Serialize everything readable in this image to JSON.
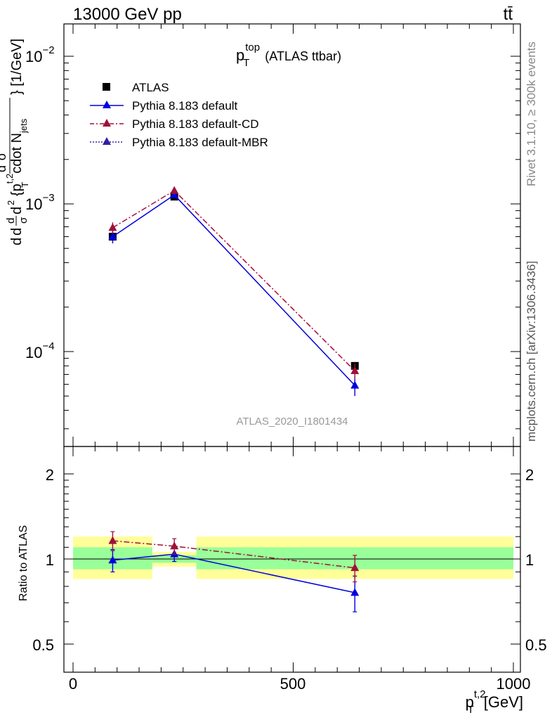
{
  "header": {
    "left": "13000 GeV pp",
    "right": "tt̄"
  },
  "side_labels": {
    "rivet": "Rivet 3.1.10, ≥ 300k events",
    "mcplots": "mcplots.cern.ch [arXiv:1306.3436]"
  },
  "chart_data": [
    {
      "type": "scatter",
      "panel": "main",
      "title": "p_T^top (ATLAS ttbar)",
      "title_parts": {
        "main": "p",
        "sup": "top",
        "sub": "T",
        "suffix": "(ATLAS ttbar)"
      },
      "ylabel": "d σ / d^2 {p_T^{t,2} cdot N_jets} [1/GeV] (normalized)",
      "ylabel_parts": {
        "frac1_num": "d",
        "frac1_den": "σ",
        "frac2_num": "d",
        "frac2_den": "σ",
        "sigma_left": "d",
        "dsq_num": "d",
        "dsq_num_sup": "2",
        "sigma_sup": "fid",
        "d2": "d",
        "d2_sup": "2",
        "brace": "{p",
        "pt_sup": "t,2",
        "pt_sub": "T",
        "cdot": "cdot N",
        "jets_sub": "jets",
        "unit": "} [1/GeV]"
      },
      "yscale": "log",
      "ylim": [
        2.5e-05,
        0.016
      ],
      "xlim": [
        -20,
        1000
      ],
      "ytick_labels": [
        {
          "base": "10",
          "exp": "−2",
          "value": 0.01
        },
        {
          "base": "10",
          "exp": "−3",
          "value": 0.001
        },
        {
          "base": "10",
          "exp": "−4",
          "value": 0.0001
        }
      ],
      "legend": [
        "ATLAS",
        "Pythia 8.183 default",
        "Pythia 8.183 default-CD",
        "Pythia 8.183 default-MBR"
      ],
      "watermark": "ATLAS_2020_I1801434",
      "series": [
        {
          "name": "ATLAS",
          "color": "#000000",
          "marker": "square",
          "x": [
            90,
            230,
            640
          ],
          "y": [
            0.0006,
            0.00112,
            8e-05
          ],
          "yerr": [
            4e-05,
            4e-05,
            1.8e-06
          ]
        },
        {
          "name": "Pythia 8.183 default",
          "color": "#0000dd",
          "marker": "triangle",
          "line": "solid",
          "x": [
            90,
            230,
            640
          ],
          "y": [
            0.0006,
            0.00115,
            5.9e-05
          ],
          "yerr": [
            6e-05,
            6e-05,
            9e-06
          ]
        },
        {
          "name": "Pythia 8.183 default-CD",
          "color": "#a0103a",
          "marker": "triangle",
          "line": "dashdot",
          "x": [
            90,
            230,
            640
          ],
          "y": [
            0.00069,
            0.00123,
            7.4e-05
          ],
          "yerr": [
            6e-05,
            7e-05,
            9e-06
          ]
        },
        {
          "name": "Pythia 8.183 default-MBR",
          "color": "#3020a0",
          "marker": "triangle",
          "line": "dotted",
          "x": [],
          "y": [],
          "yerr": []
        }
      ]
    },
    {
      "type": "scatter",
      "panel": "ratio",
      "ylabel": "Ratio to ATLAS",
      "ylim": [
        0.42,
        2.3
      ],
      "xlim": [
        -20,
        1000
      ],
      "ytick_labels": [
        "2",
        "1",
        "0.5"
      ],
      "xtick_labels": [
        "0",
        "500",
        "1000"
      ],
      "xlabel_parts": {
        "main": "p",
        "sup": "t,2",
        "sub": "T",
        "unit": "[GeV]"
      },
      "bands": [
        {
          "xmin": 0,
          "xmax": 180,
          "inner": [
            0.92,
            1.1
          ],
          "outer": [
            0.85,
            1.2
          ]
        },
        {
          "xmin": 180,
          "xmax": 280,
          "inner": [
            0.97,
            1.03
          ],
          "outer": [
            0.94,
            1.06
          ]
        },
        {
          "xmin": 280,
          "xmax": 1000,
          "inner": [
            0.92,
            1.1
          ],
          "outer": [
            0.85,
            1.2
          ]
        }
      ],
      "band_colors": {
        "inner": "#99ff99",
        "outer": "#ffff99"
      },
      "series": [
        {
          "name": "Pythia 8.183 default",
          "color": "#0000dd",
          "line": "solid",
          "x": [
            90,
            230,
            640
          ],
          "y": [
            0.99,
            1.04,
            0.76
          ],
          "yerr": [
            0.09,
            0.06,
            0.11
          ]
        },
        {
          "name": "Pythia 8.183 default-CD",
          "color": "#a0103a",
          "line": "dashdot",
          "x": [
            90,
            230,
            640
          ],
          "y": [
            1.16,
            1.11,
            0.93
          ],
          "yerr": [
            0.09,
            0.07,
            0.1
          ]
        }
      ]
    }
  ]
}
